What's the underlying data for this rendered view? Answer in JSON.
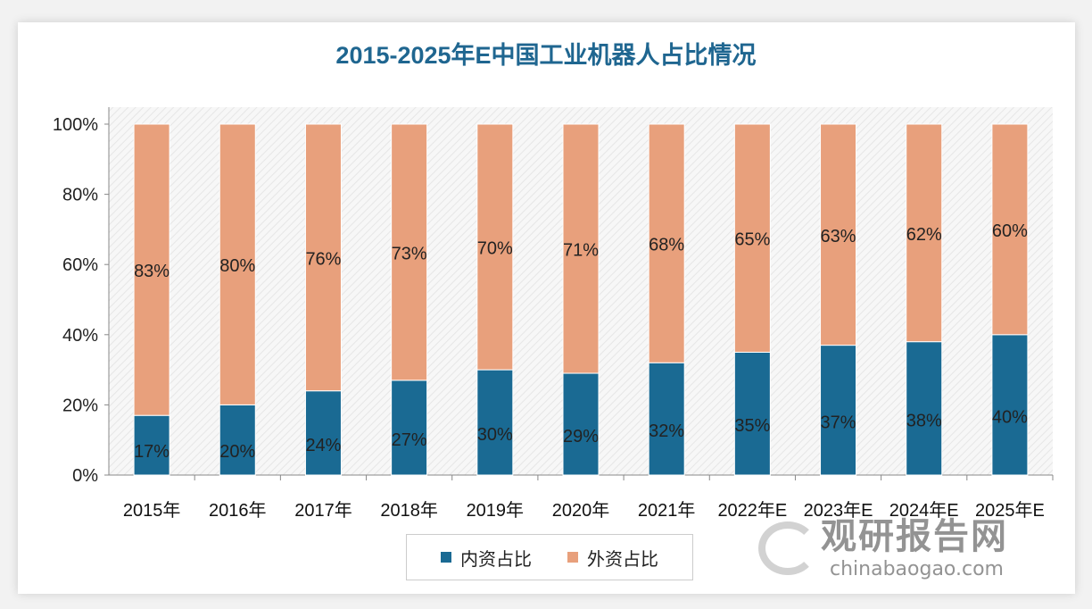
{
  "chart_data": {
    "type": "bar",
    "stacked": true,
    "title": "2015-2025年E中国工业机器人占比情况",
    "categories": [
      "2015年",
      "2016年",
      "2017年",
      "2018年",
      "2019年",
      "2020年",
      "2021年",
      "2022年E",
      "2023年E",
      "2024年E",
      "2025年E"
    ],
    "series": [
      {
        "name": "内资占比",
        "color": "#1a6a93",
        "values": [
          17,
          20,
          24,
          27,
          30,
          29,
          32,
          35,
          37,
          38,
          40
        ]
      },
      {
        "name": "外资占比",
        "color": "#e8a07c",
        "values": [
          83,
          80,
          76,
          73,
          70,
          71,
          68,
          65,
          63,
          62,
          60
        ]
      }
    ],
    "yticks": [
      "0%",
      "20%",
      "40%",
      "60%",
      "80%",
      "100%"
    ],
    "ylim": [
      0,
      100
    ],
    "legend": "bottom",
    "grid": false
  },
  "watermark": {
    "cn": "观研报告网",
    "en": "chinabaogao.com"
  }
}
